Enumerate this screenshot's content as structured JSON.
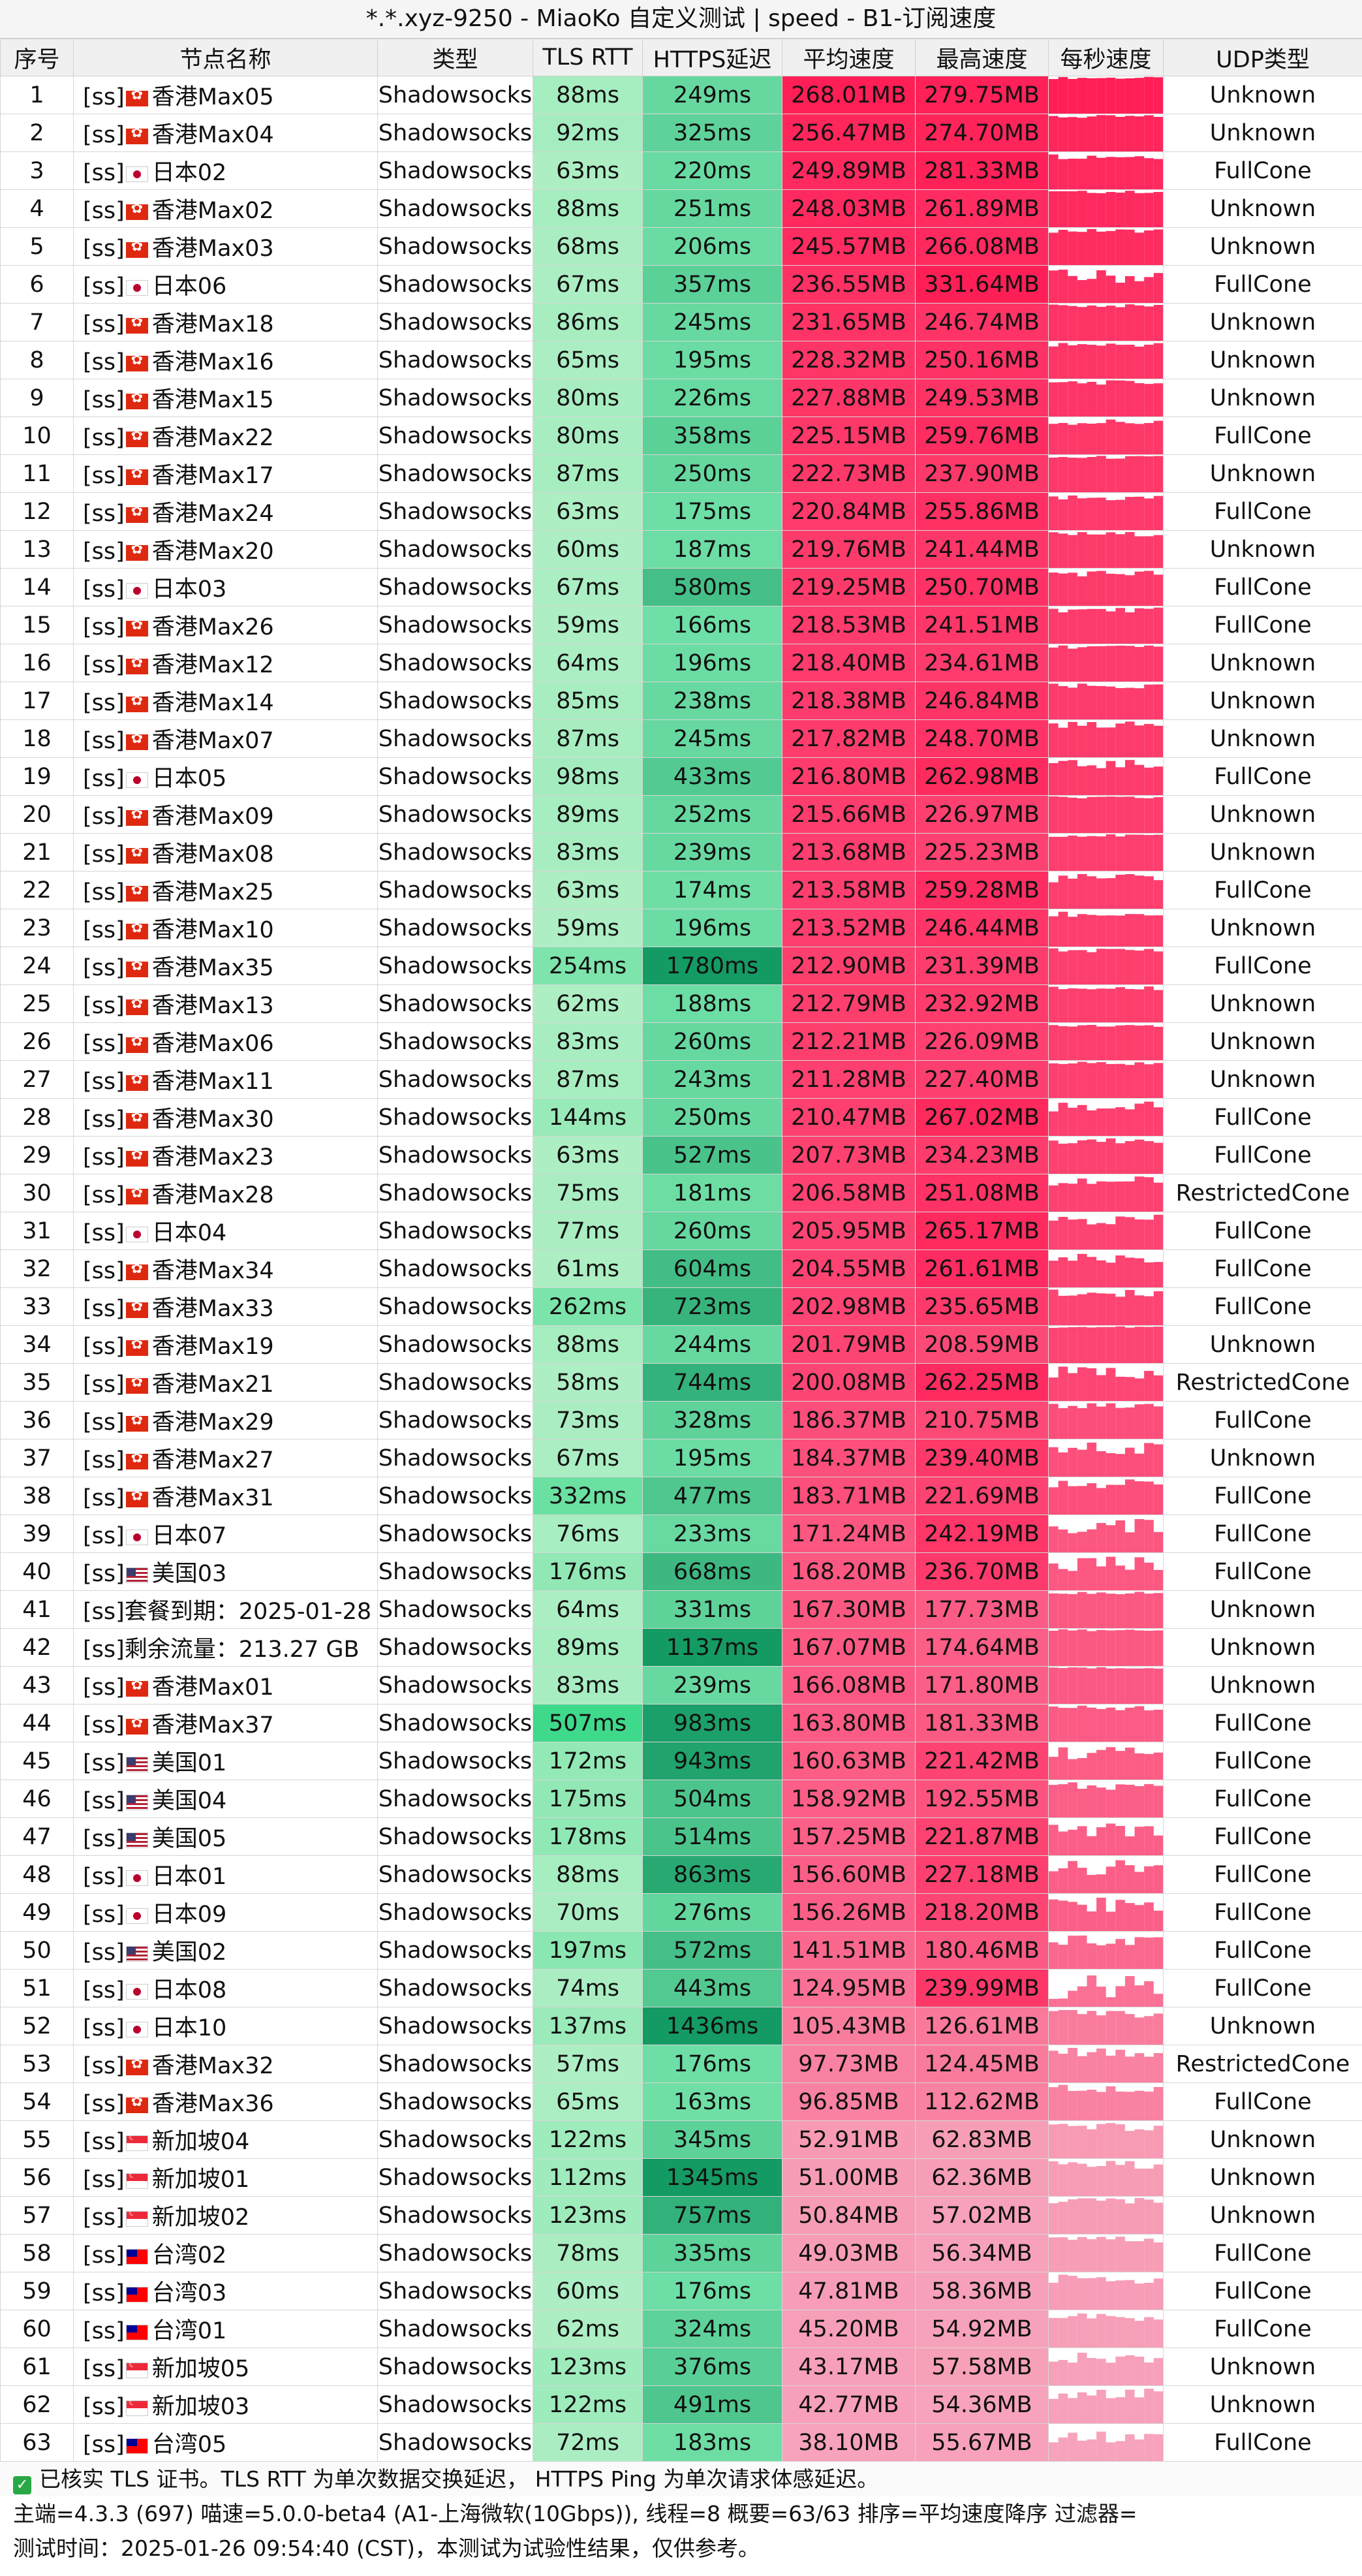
{
  "title": "*.*.xyz-9250 - MiaoKo 自定义测试 | speed - B1-订阅速度",
  "columns": [
    "序号",
    "节点名称",
    "类型",
    "TLS RTT",
    "HTTPS延迟",
    "平均速度",
    "最高速度",
    "每秒速度",
    "UDP类型"
  ],
  "colors": {
    "tls_low": "#aeeec4",
    "tls_high": "#3fd98b",
    "https_low": "#6fdfa6",
    "https_high": "#149a63",
    "speed_low": "#f7a3bb",
    "speed_high": "#ff1f56"
  },
  "rows": [
    {
      "no": "1",
      "name": "[ss] 香港Max05",
      "flag": "hk",
      "type": "Shadowsocks",
      "tls": "88ms",
      "https": "249ms",
      "avg": "268.01MB",
      "max": "279.75MB",
      "udp": "Unknown"
    },
    {
      "no": "2",
      "name": "[ss] 香港Max04",
      "flag": "hk",
      "type": "Shadowsocks",
      "tls": "92ms",
      "https": "325ms",
      "avg": "256.47MB",
      "max": "274.70MB",
      "udp": "Unknown"
    },
    {
      "no": "3",
      "name": "[ss] 日本02",
      "flag": "jp",
      "type": "Shadowsocks",
      "tls": "63ms",
      "https": "220ms",
      "avg": "249.89MB",
      "max": "281.33MB",
      "udp": "FullCone"
    },
    {
      "no": "4",
      "name": "[ss] 香港Max02",
      "flag": "hk",
      "type": "Shadowsocks",
      "tls": "88ms",
      "https": "251ms",
      "avg": "248.03MB",
      "max": "261.89MB",
      "udp": "Unknown"
    },
    {
      "no": "5",
      "name": "[ss] 香港Max03",
      "flag": "hk",
      "type": "Shadowsocks",
      "tls": "68ms",
      "https": "206ms",
      "avg": "245.57MB",
      "max": "266.08MB",
      "udp": "Unknown"
    },
    {
      "no": "6",
      "name": "[ss] 日本06",
      "flag": "jp",
      "type": "Shadowsocks",
      "tls": "67ms",
      "https": "357ms",
      "avg": "236.55MB",
      "max": "331.64MB",
      "udp": "FullCone"
    },
    {
      "no": "7",
      "name": "[ss] 香港Max18",
      "flag": "hk",
      "type": "Shadowsocks",
      "tls": "86ms",
      "https": "245ms",
      "avg": "231.65MB",
      "max": "246.74MB",
      "udp": "Unknown"
    },
    {
      "no": "8",
      "name": "[ss] 香港Max16",
      "flag": "hk",
      "type": "Shadowsocks",
      "tls": "65ms",
      "https": "195ms",
      "avg": "228.32MB",
      "max": "250.16MB",
      "udp": "Unknown"
    },
    {
      "no": "9",
      "name": "[ss] 香港Max15",
      "flag": "hk",
      "type": "Shadowsocks",
      "tls": "80ms",
      "https": "226ms",
      "avg": "227.88MB",
      "max": "249.53MB",
      "udp": "Unknown"
    },
    {
      "no": "10",
      "name": "[ss] 香港Max22",
      "flag": "hk",
      "type": "Shadowsocks",
      "tls": "80ms",
      "https": "358ms",
      "avg": "225.15MB",
      "max": "259.76MB",
      "udp": "FullCone"
    },
    {
      "no": "11",
      "name": "[ss] 香港Max17",
      "flag": "hk",
      "type": "Shadowsocks",
      "tls": "87ms",
      "https": "250ms",
      "avg": "222.73MB",
      "max": "237.90MB",
      "udp": "Unknown"
    },
    {
      "no": "12",
      "name": "[ss] 香港Max24",
      "flag": "hk",
      "type": "Shadowsocks",
      "tls": "63ms",
      "https": "175ms",
      "avg": "220.84MB",
      "max": "255.86MB",
      "udp": "FullCone"
    },
    {
      "no": "13",
      "name": "[ss] 香港Max20",
      "flag": "hk",
      "type": "Shadowsocks",
      "tls": "60ms",
      "https": "187ms",
      "avg": "219.76MB",
      "max": "241.44MB",
      "udp": "Unknown"
    },
    {
      "no": "14",
      "name": "[ss] 日本03",
      "flag": "jp",
      "type": "Shadowsocks",
      "tls": "67ms",
      "https": "580ms",
      "avg": "219.25MB",
      "max": "250.70MB",
      "udp": "FullCone"
    },
    {
      "no": "15",
      "name": "[ss] 香港Max26",
      "flag": "hk",
      "type": "Shadowsocks",
      "tls": "59ms",
      "https": "166ms",
      "avg": "218.53MB",
      "max": "241.51MB",
      "udp": "FullCone"
    },
    {
      "no": "16",
      "name": "[ss] 香港Max12",
      "flag": "hk",
      "type": "Shadowsocks",
      "tls": "64ms",
      "https": "196ms",
      "avg": "218.40MB",
      "max": "234.61MB",
      "udp": "Unknown"
    },
    {
      "no": "17",
      "name": "[ss] 香港Max14",
      "flag": "hk",
      "type": "Shadowsocks",
      "tls": "85ms",
      "https": "238ms",
      "avg": "218.38MB",
      "max": "246.84MB",
      "udp": "Unknown"
    },
    {
      "no": "18",
      "name": "[ss] 香港Max07",
      "flag": "hk",
      "type": "Shadowsocks",
      "tls": "87ms",
      "https": "245ms",
      "avg": "217.82MB",
      "max": "248.70MB",
      "udp": "Unknown"
    },
    {
      "no": "19",
      "name": "[ss] 日本05",
      "flag": "jp",
      "type": "Shadowsocks",
      "tls": "98ms",
      "https": "433ms",
      "avg": "216.80MB",
      "max": "262.98MB",
      "udp": "FullCone"
    },
    {
      "no": "20",
      "name": "[ss] 香港Max09",
      "flag": "hk",
      "type": "Shadowsocks",
      "tls": "89ms",
      "https": "252ms",
      "avg": "215.66MB",
      "max": "226.97MB",
      "udp": "Unknown"
    },
    {
      "no": "21",
      "name": "[ss] 香港Max08",
      "flag": "hk",
      "type": "Shadowsocks",
      "tls": "83ms",
      "https": "239ms",
      "avg": "213.68MB",
      "max": "225.23MB",
      "udp": "Unknown"
    },
    {
      "no": "22",
      "name": "[ss] 香港Max25",
      "flag": "hk",
      "type": "Shadowsocks",
      "tls": "63ms",
      "https": "174ms",
      "avg": "213.58MB",
      "max": "259.28MB",
      "udp": "FullCone"
    },
    {
      "no": "23",
      "name": "[ss] 香港Max10",
      "flag": "hk",
      "type": "Shadowsocks",
      "tls": "59ms",
      "https": "196ms",
      "avg": "213.52MB",
      "max": "246.44MB",
      "udp": "Unknown"
    },
    {
      "no": "24",
      "name": "[ss] 香港Max35",
      "flag": "hk",
      "type": "Shadowsocks",
      "tls": "254ms",
      "https": "1780ms",
      "avg": "212.90MB",
      "max": "231.39MB",
      "udp": "FullCone"
    },
    {
      "no": "25",
      "name": "[ss] 香港Max13",
      "flag": "hk",
      "type": "Shadowsocks",
      "tls": "62ms",
      "https": "188ms",
      "avg": "212.79MB",
      "max": "232.92MB",
      "udp": "Unknown"
    },
    {
      "no": "26",
      "name": "[ss] 香港Max06",
      "flag": "hk",
      "type": "Shadowsocks",
      "tls": "83ms",
      "https": "260ms",
      "avg": "212.21MB",
      "max": "226.09MB",
      "udp": "Unknown"
    },
    {
      "no": "27",
      "name": "[ss] 香港Max11",
      "flag": "hk",
      "type": "Shadowsocks",
      "tls": "87ms",
      "https": "243ms",
      "avg": "211.28MB",
      "max": "227.40MB",
      "udp": "Unknown"
    },
    {
      "no": "28",
      "name": "[ss] 香港Max30",
      "flag": "hk",
      "type": "Shadowsocks",
      "tls": "144ms",
      "https": "250ms",
      "avg": "210.47MB",
      "max": "267.02MB",
      "udp": "FullCone"
    },
    {
      "no": "29",
      "name": "[ss] 香港Max23",
      "flag": "hk",
      "type": "Shadowsocks",
      "tls": "63ms",
      "https": "527ms",
      "avg": "207.73MB",
      "max": "234.23MB",
      "udp": "FullCone"
    },
    {
      "no": "30",
      "name": "[ss] 香港Max28",
      "flag": "hk",
      "type": "Shadowsocks",
      "tls": "75ms",
      "https": "181ms",
      "avg": "206.58MB",
      "max": "251.08MB",
      "udp": "RestrictedCone"
    },
    {
      "no": "31",
      "name": "[ss] 日本04",
      "flag": "jp",
      "type": "Shadowsocks",
      "tls": "77ms",
      "https": "260ms",
      "avg": "205.95MB",
      "max": "265.17MB",
      "udp": "FullCone"
    },
    {
      "no": "32",
      "name": "[ss] 香港Max34",
      "flag": "hk",
      "type": "Shadowsocks",
      "tls": "61ms",
      "https": "604ms",
      "avg": "204.55MB",
      "max": "261.61MB",
      "udp": "FullCone"
    },
    {
      "no": "33",
      "name": "[ss] 香港Max33",
      "flag": "hk",
      "type": "Shadowsocks",
      "tls": "262ms",
      "https": "723ms",
      "avg": "202.98MB",
      "max": "235.65MB",
      "udp": "FullCone"
    },
    {
      "no": "34",
      "name": "[ss] 香港Max19",
      "flag": "hk",
      "type": "Shadowsocks",
      "tls": "88ms",
      "https": "244ms",
      "avg": "201.79MB",
      "max": "208.59MB",
      "udp": "Unknown"
    },
    {
      "no": "35",
      "name": "[ss] 香港Max21",
      "flag": "hk",
      "type": "Shadowsocks",
      "tls": "58ms",
      "https": "744ms",
      "avg": "200.08MB",
      "max": "262.25MB",
      "udp": "RestrictedCone"
    },
    {
      "no": "36",
      "name": "[ss] 香港Max29",
      "flag": "hk",
      "type": "Shadowsocks",
      "tls": "73ms",
      "https": "328ms",
      "avg": "186.37MB",
      "max": "210.75MB",
      "udp": "FullCone"
    },
    {
      "no": "37",
      "name": "[ss] 香港Max27",
      "flag": "hk",
      "type": "Shadowsocks",
      "tls": "67ms",
      "https": "195ms",
      "avg": "184.37MB",
      "max": "239.40MB",
      "udp": "Unknown"
    },
    {
      "no": "38",
      "name": "[ss] 香港Max31",
      "flag": "hk",
      "type": "Shadowsocks",
      "tls": "332ms",
      "https": "477ms",
      "avg": "183.71MB",
      "max": "221.69MB",
      "udp": "FullCone"
    },
    {
      "no": "39",
      "name": "[ss] 日本07",
      "flag": "jp",
      "type": "Shadowsocks",
      "tls": "76ms",
      "https": "233ms",
      "avg": "171.24MB",
      "max": "242.19MB",
      "udp": "FullCone"
    },
    {
      "no": "40",
      "name": "[ss] 美国03",
      "flag": "us",
      "type": "Shadowsocks",
      "tls": "176ms",
      "https": "668ms",
      "avg": "168.20MB",
      "max": "236.70MB",
      "udp": "FullCone"
    },
    {
      "no": "41",
      "name": "[ss]套餐到期：2025-01-28",
      "flag": "",
      "type": "Shadowsocks",
      "tls": "64ms",
      "https": "331ms",
      "avg": "167.30MB",
      "max": "177.73MB",
      "udp": "Unknown"
    },
    {
      "no": "42",
      "name": "[ss]剩余流量：213.27 GB",
      "flag": "",
      "type": "Shadowsocks",
      "tls": "89ms",
      "https": "1137ms",
      "avg": "167.07MB",
      "max": "174.64MB",
      "udp": "Unknown"
    },
    {
      "no": "43",
      "name": "[ss] 香港Max01",
      "flag": "hk",
      "type": "Shadowsocks",
      "tls": "83ms",
      "https": "239ms",
      "avg": "166.08MB",
      "max": "171.80MB",
      "udp": "Unknown"
    },
    {
      "no": "44",
      "name": "[ss] 香港Max37",
      "flag": "hk",
      "type": "Shadowsocks",
      "tls": "507ms",
      "https": "983ms",
      "avg": "163.80MB",
      "max": "181.33MB",
      "udp": "FullCone"
    },
    {
      "no": "45",
      "name": "[ss] 美国01",
      "flag": "us",
      "type": "Shadowsocks",
      "tls": "172ms",
      "https": "943ms",
      "avg": "160.63MB",
      "max": "221.42MB",
      "udp": "FullCone"
    },
    {
      "no": "46",
      "name": "[ss] 美国04",
      "flag": "us",
      "type": "Shadowsocks",
      "tls": "175ms",
      "https": "504ms",
      "avg": "158.92MB",
      "max": "192.55MB",
      "udp": "FullCone"
    },
    {
      "no": "47",
      "name": "[ss] 美国05",
      "flag": "us",
      "type": "Shadowsocks",
      "tls": "178ms",
      "https": "514ms",
      "avg": "157.25MB",
      "max": "221.87MB",
      "udp": "FullCone"
    },
    {
      "no": "48",
      "name": "[ss] 日本01",
      "flag": "jp",
      "type": "Shadowsocks",
      "tls": "88ms",
      "https": "863ms",
      "avg": "156.60MB",
      "max": "227.18MB",
      "udp": "FullCone"
    },
    {
      "no": "49",
      "name": "[ss] 日本09",
      "flag": "jp",
      "type": "Shadowsocks",
      "tls": "70ms",
      "https": "276ms",
      "avg": "156.26MB",
      "max": "218.20MB",
      "udp": "FullCone"
    },
    {
      "no": "50",
      "name": "[ss] 美国02",
      "flag": "us",
      "type": "Shadowsocks",
      "tls": "197ms",
      "https": "572ms",
      "avg": "141.51MB",
      "max": "180.46MB",
      "udp": "FullCone"
    },
    {
      "no": "51",
      "name": "[ss] 日本08",
      "flag": "jp",
      "type": "Shadowsocks",
      "tls": "74ms",
      "https": "443ms",
      "avg": "124.95MB",
      "max": "239.99MB",
      "udp": "FullCone"
    },
    {
      "no": "52",
      "name": "[ss] 日本10",
      "flag": "jp",
      "type": "Shadowsocks",
      "tls": "137ms",
      "https": "1436ms",
      "avg": "105.43MB",
      "max": "126.61MB",
      "udp": "Unknown"
    },
    {
      "no": "53",
      "name": "[ss] 香港Max32",
      "flag": "hk",
      "type": "Shadowsocks",
      "tls": "57ms",
      "https": "176ms",
      "avg": "97.73MB",
      "max": "124.45MB",
      "udp": "RestrictedCone"
    },
    {
      "no": "54",
      "name": "[ss] 香港Max36",
      "flag": "hk",
      "type": "Shadowsocks",
      "tls": "65ms",
      "https": "163ms",
      "avg": "96.85MB",
      "max": "112.62MB",
      "udp": "FullCone"
    },
    {
      "no": "55",
      "name": "[ss] 新加坡04",
      "flag": "sg",
      "type": "Shadowsocks",
      "tls": "122ms",
      "https": "345ms",
      "avg": "52.91MB",
      "max": "62.83MB",
      "udp": "Unknown"
    },
    {
      "no": "56",
      "name": "[ss] 新加坡01",
      "flag": "sg",
      "type": "Shadowsocks",
      "tls": "112ms",
      "https": "1345ms",
      "avg": "51.00MB",
      "max": "62.36MB",
      "udp": "Unknown"
    },
    {
      "no": "57",
      "name": "[ss] 新加坡02",
      "flag": "sg",
      "type": "Shadowsocks",
      "tls": "123ms",
      "https": "757ms",
      "avg": "50.84MB",
      "max": "57.02MB",
      "udp": "Unknown"
    },
    {
      "no": "58",
      "name": "[ss] 台湾02",
      "flag": "tw",
      "type": "Shadowsocks",
      "tls": "78ms",
      "https": "335ms",
      "avg": "49.03MB",
      "max": "56.34MB",
      "udp": "FullCone"
    },
    {
      "no": "59",
      "name": "[ss] 台湾03",
      "flag": "tw",
      "type": "Shadowsocks",
      "tls": "60ms",
      "https": "176ms",
      "avg": "47.81MB",
      "max": "58.36MB",
      "udp": "FullCone"
    },
    {
      "no": "60",
      "name": "[ss] 台湾01",
      "flag": "tw",
      "type": "Shadowsocks",
      "tls": "62ms",
      "https": "324ms",
      "avg": "45.20MB",
      "max": "54.92MB",
      "udp": "FullCone"
    },
    {
      "no": "61",
      "name": "[ss] 新加坡05",
      "flag": "sg",
      "type": "Shadowsocks",
      "tls": "123ms",
      "https": "376ms",
      "avg": "43.17MB",
      "max": "57.58MB",
      "udp": "Unknown"
    },
    {
      "no": "62",
      "name": "[ss] 新加坡03",
      "flag": "sg",
      "type": "Shadowsocks",
      "tls": "122ms",
      "https": "491ms",
      "avg": "42.77MB",
      "max": "54.36MB",
      "udp": "Unknown"
    },
    {
      "no": "63",
      "name": "[ss] 台湾05",
      "flag": "tw",
      "type": "Shadowsocks",
      "tls": "72ms",
      "https": "183ms",
      "avg": "38.10MB",
      "max": "55.67MB",
      "udp": "FullCone"
    }
  ],
  "footer": {
    "note": "已核实 TLS 证书。TLS RTT 为单次数据交换延迟， HTTPS Ping 为单次请求体感延迟。",
    "info": "主端=4.3.3 (697) 喵速=5.0.0-beta4 (A1-上海微软(10Gbps)), 线程=8 概要=63/63 排序=平均速度降序 过滤器=",
    "time": "测试时间：2025-01-26 09:54:40 (CST)，本测试为试验性结果，仅供参考。"
  }
}
